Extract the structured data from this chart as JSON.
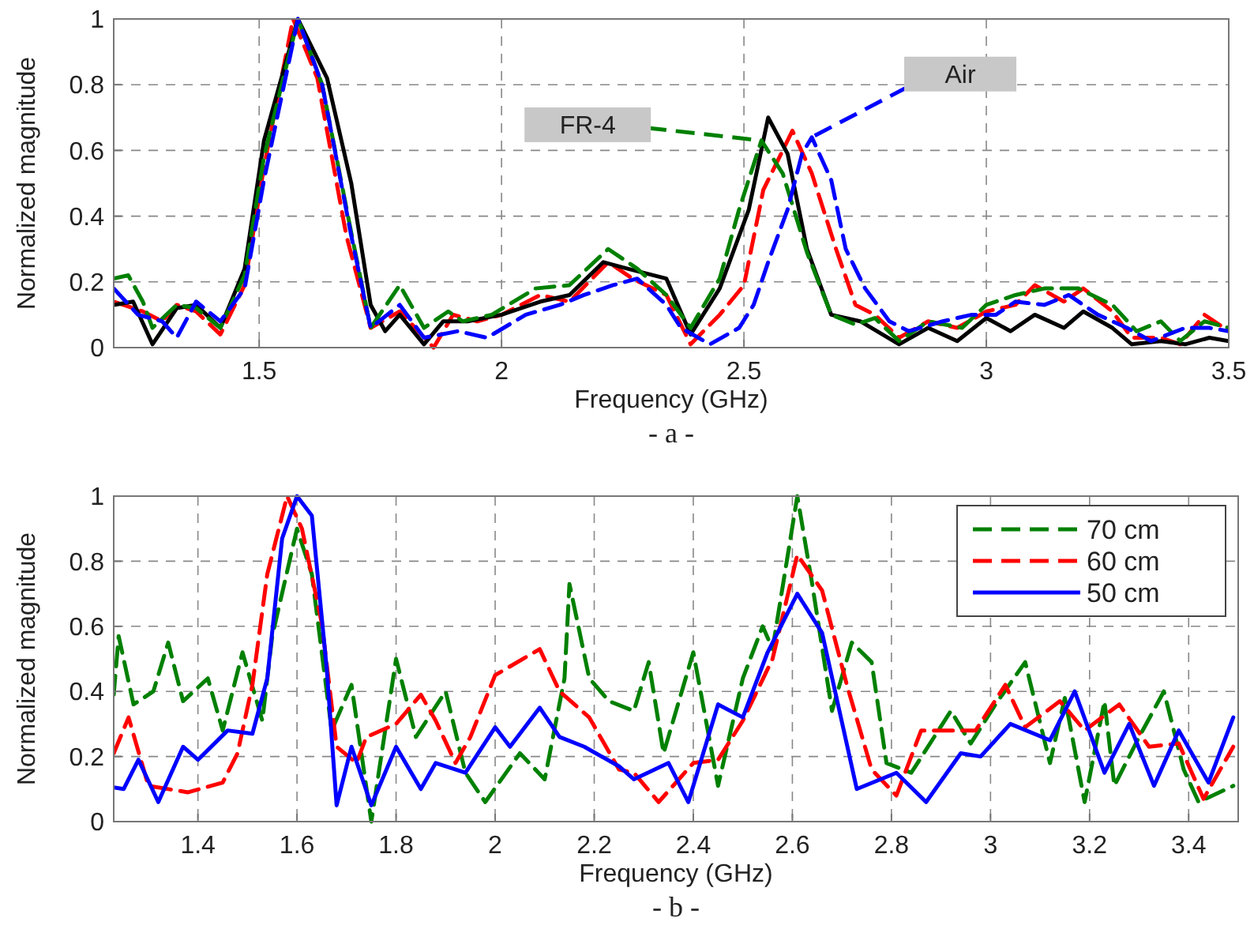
{
  "chart_data": [
    {
      "type": "line",
      "xlabel": "Frequency (GHz)",
      "ylabel": "Normalized magnitude",
      "xlim": [
        1.2,
        3.5
      ],
      "ylim": [
        0,
        1
      ],
      "xticks": [
        1.5,
        2,
        2.5,
        3,
        3.5
      ],
      "yticks": [
        0,
        0.2,
        0.4,
        0.6,
        0.8,
        1
      ],
      "grid": true,
      "legend": false,
      "series": [
        {
          "color": "#ff0000",
          "line_style": "dashed",
          "x": [
            1.2,
            1.26,
            1.3,
            1.33,
            1.37,
            1.42,
            1.47,
            1.51,
            1.57,
            1.62,
            1.68,
            1.73,
            1.79,
            1.86,
            1.9,
            1.95,
            2.0,
            2.08,
            2.14,
            2.22,
            2.27,
            2.34,
            2.39,
            2.45,
            2.5,
            2.54,
            2.6,
            2.64,
            2.69,
            2.73,
            2.77,
            2.82,
            2.88,
            2.94,
            3.0,
            3.06,
            3.1,
            3.16,
            3.2,
            3.26,
            3.3,
            3.36,
            3.4,
            3.45,
            3.5
          ],
          "values": [
            0.14,
            0.11,
            0.08,
            0.13,
            0.11,
            0.04,
            0.19,
            0.55,
            1.0,
            0.82,
            0.34,
            0.06,
            0.11,
            0.0,
            0.1,
            0.08,
            0.1,
            0.16,
            0.14,
            0.26,
            0.21,
            0.16,
            0.01,
            0.1,
            0.19,
            0.48,
            0.66,
            0.53,
            0.3,
            0.13,
            0.1,
            0.03,
            0.08,
            0.06,
            0.11,
            0.13,
            0.19,
            0.14,
            0.18,
            0.11,
            0.03,
            0.03,
            0.01,
            0.1,
            0.05
          ]
        },
        {
          "color": "#000000",
          "line_style": "solid",
          "x": [
            1.2,
            1.24,
            1.28,
            1.33,
            1.37,
            1.42,
            1.47,
            1.51,
            1.58,
            1.64,
            1.69,
            1.73,
            1.76,
            1.79,
            1.84,
            1.88,
            1.93,
            2.0,
            2.08,
            2.14,
            2.21,
            2.26,
            2.34,
            2.39,
            2.45,
            2.51,
            2.55,
            2.59,
            2.63,
            2.68,
            2.74,
            2.82,
            2.88,
            2.94,
            3.0,
            3.05,
            3.1,
            3.16,
            3.2,
            3.26,
            3.3,
            3.36,
            3.41,
            3.46,
            3.5
          ],
          "values": [
            0.13,
            0.14,
            0.01,
            0.12,
            0.13,
            0.06,
            0.24,
            0.63,
            1.0,
            0.82,
            0.5,
            0.13,
            0.05,
            0.1,
            0.01,
            0.08,
            0.08,
            0.1,
            0.14,
            0.16,
            0.26,
            0.24,
            0.21,
            0.04,
            0.18,
            0.42,
            0.7,
            0.59,
            0.3,
            0.1,
            0.08,
            0.01,
            0.06,
            0.02,
            0.09,
            0.05,
            0.1,
            0.06,
            0.11,
            0.06,
            0.01,
            0.02,
            0.01,
            0.03,
            0.02
          ]
        },
        {
          "color": "#008000",
          "line_style": "dashed",
          "x": [
            1.2,
            1.23,
            1.26,
            1.28,
            1.33,
            1.37,
            1.42,
            1.47,
            1.51,
            1.58,
            1.63,
            1.69,
            1.73,
            1.79,
            1.84,
            1.89,
            1.92,
            1.98,
            2.07,
            2.14,
            2.22,
            2.28,
            2.34,
            2.39,
            2.45,
            2.49,
            2.536,
            2.58,
            2.63,
            2.68,
            2.73,
            2.77,
            2.82,
            2.88,
            2.95,
            3.0,
            3.06,
            3.12,
            3.19,
            3.26,
            3.31,
            3.36,
            3.4,
            3.45,
            3.5
          ],
          "values": [
            0.21,
            0.22,
            0.14,
            0.06,
            0.13,
            0.12,
            0.06,
            0.22,
            0.58,
            1.0,
            0.8,
            0.35,
            0.06,
            0.19,
            0.06,
            0.11,
            0.08,
            0.1,
            0.18,
            0.19,
            0.3,
            0.24,
            0.16,
            0.06,
            0.21,
            0.42,
            0.63,
            0.53,
            0.29,
            0.1,
            0.07,
            0.09,
            0.02,
            0.08,
            0.06,
            0.13,
            0.16,
            0.18,
            0.18,
            0.13,
            0.05,
            0.08,
            0.02,
            0.08,
            0.06
          ]
        },
        {
          "color": "#0000ff",
          "line_style": "dashed",
          "x": [
            1.2,
            1.25,
            1.3,
            1.33,
            1.37,
            1.42,
            1.47,
            1.51,
            1.58,
            1.63,
            1.69,
            1.73,
            1.79,
            1.84,
            1.91,
            1.97,
            2.05,
            2.12,
            2.17,
            2.23,
            2.28,
            2.34,
            2.37,
            2.43,
            2.49,
            2.52,
            2.55,
            2.59,
            2.62,
            2.64,
            2.68,
            2.71,
            2.75,
            2.8,
            2.84,
            2.91,
            2.97,
            3.02,
            3.06,
            3.12,
            3.17,
            3.23,
            3.29,
            3.34,
            3.41,
            3.46,
            3.5
          ],
          "values": [
            0.18,
            0.1,
            0.08,
            0.03,
            0.14,
            0.08,
            0.18,
            0.51,
            1.0,
            0.8,
            0.34,
            0.06,
            0.13,
            0.03,
            0.05,
            0.03,
            0.1,
            0.13,
            0.16,
            0.19,
            0.21,
            0.13,
            0.06,
            0.01,
            0.06,
            0.13,
            0.26,
            0.42,
            0.59,
            0.64,
            0.51,
            0.3,
            0.18,
            0.08,
            0.05,
            0.08,
            0.1,
            0.1,
            0.14,
            0.13,
            0.16,
            0.1,
            0.06,
            0.02,
            0.06,
            0.06,
            0.05
          ]
        }
      ],
      "annotations": [
        {
          "text": "FR-4",
          "x": 2.536,
          "y": 0.63
        },
        {
          "text": "Air",
          "x": 2.64,
          "y": 0.64
        },
        "- a -"
      ]
    },
    {
      "type": "line",
      "xlabel": "Frequency (GHz)",
      "ylabel": "Normalized magnitude",
      "xlim": [
        1.23,
        3.5
      ],
      "ylim": [
        0,
        1
      ],
      "xticks": [
        1.4,
        1.6,
        1.8,
        2,
        2.2,
        2.4,
        2.6,
        2.8,
        3,
        3.2,
        3.4
      ],
      "yticks": [
        0,
        0.2,
        0.4,
        0.6,
        0.8,
        1
      ],
      "grid": true,
      "legend": "top right",
      "series": [
        {
          "name": "70 cm",
          "color": "#008000",
          "line_style": "dashed",
          "x": [
            1.23,
            1.24,
            1.27,
            1.31,
            1.34,
            1.37,
            1.42,
            1.45,
            1.49,
            1.53,
            1.55,
            1.6,
            1.63,
            1.67,
            1.71,
            1.75,
            1.8,
            1.84,
            1.9,
            1.94,
            1.98,
            2.05,
            2.1,
            2.14,
            2.15,
            2.19,
            2.23,
            2.28,
            2.31,
            2.34,
            2.4,
            2.45,
            2.5,
            2.54,
            2.56,
            2.61,
            2.64,
            2.68,
            2.72,
            2.76,
            2.79,
            2.84,
            2.92,
            2.96,
            3.01,
            3.07,
            3.12,
            3.15,
            3.19,
            3.23,
            3.25,
            3.3,
            3.35,
            3.39,
            3.42,
            3.49
          ],
          "values": [
            0.39,
            0.57,
            0.36,
            0.4,
            0.55,
            0.37,
            0.44,
            0.28,
            0.52,
            0.31,
            0.57,
            0.9,
            0.76,
            0.28,
            0.42,
            0.0,
            0.5,
            0.26,
            0.4,
            0.15,
            0.06,
            0.21,
            0.13,
            0.44,
            0.73,
            0.44,
            0.37,
            0.34,
            0.49,
            0.21,
            0.52,
            0.11,
            0.44,
            0.6,
            0.53,
            1.0,
            0.73,
            0.34,
            0.55,
            0.49,
            0.18,
            0.15,
            0.34,
            0.24,
            0.36,
            0.49,
            0.18,
            0.38,
            0.06,
            0.37,
            0.11,
            0.26,
            0.4,
            0.16,
            0.06,
            0.11
          ]
        },
        {
          "name": "60 cm",
          "color": "#ff0000",
          "line_style": "dashed",
          "x": [
            1.23,
            1.26,
            1.3,
            1.38,
            1.45,
            1.48,
            1.51,
            1.54,
            1.58,
            1.61,
            1.65,
            1.68,
            1.72,
            1.74,
            1.8,
            1.85,
            1.88,
            1.92,
            1.95,
            2.0,
            2.09,
            2.13,
            2.19,
            2.25,
            2.28,
            2.33,
            2.4,
            2.45,
            2.5,
            2.56,
            2.61,
            2.66,
            2.71,
            2.76,
            2.81,
            2.86,
            2.92,
            2.97,
            3.03,
            3.07,
            3.14,
            3.19,
            3.26,
            3.32,
            3.38,
            3.43,
            3.49
          ],
          "values": [
            0.21,
            0.32,
            0.11,
            0.09,
            0.12,
            0.21,
            0.42,
            0.76,
            1.0,
            0.9,
            0.61,
            0.23,
            0.18,
            0.26,
            0.3,
            0.39,
            0.31,
            0.18,
            0.26,
            0.45,
            0.53,
            0.4,
            0.32,
            0.16,
            0.15,
            0.06,
            0.18,
            0.19,
            0.31,
            0.5,
            0.82,
            0.71,
            0.42,
            0.16,
            0.08,
            0.28,
            0.28,
            0.28,
            0.42,
            0.29,
            0.37,
            0.28,
            0.36,
            0.23,
            0.24,
            0.07,
            0.23
          ]
        },
        {
          "name": "50 cm",
          "color": "#0000ff",
          "line_style": "solid",
          "x": [
            1.23,
            1.25,
            1.28,
            1.32,
            1.37,
            1.4,
            1.46,
            1.51,
            1.54,
            1.57,
            1.6,
            1.63,
            1.66,
            1.68,
            1.71,
            1.75,
            1.8,
            1.85,
            1.88,
            1.94,
            2.0,
            2.03,
            2.09,
            2.13,
            2.18,
            2.25,
            2.28,
            2.35,
            2.39,
            2.45,
            2.5,
            2.55,
            2.61,
            2.66,
            2.73,
            2.81,
            2.87,
            2.94,
            2.98,
            3.04,
            3.12,
            3.17,
            3.23,
            3.28,
            3.33,
            3.38,
            3.44,
            3.49
          ],
          "values": [
            0.105,
            0.1,
            0.19,
            0.06,
            0.23,
            0.19,
            0.28,
            0.27,
            0.44,
            0.87,
            1.0,
            0.94,
            0.47,
            0.05,
            0.23,
            0.05,
            0.23,
            0.1,
            0.18,
            0.15,
            0.29,
            0.23,
            0.35,
            0.26,
            0.23,
            0.17,
            0.13,
            0.18,
            0.06,
            0.36,
            0.32,
            0.52,
            0.7,
            0.58,
            0.1,
            0.15,
            0.06,
            0.21,
            0.2,
            0.3,
            0.25,
            0.4,
            0.15,
            0.3,
            0.11,
            0.28,
            0.12,
            0.32
          ]
        }
      ],
      "annotations": [
        "- b -"
      ]
    }
  ]
}
